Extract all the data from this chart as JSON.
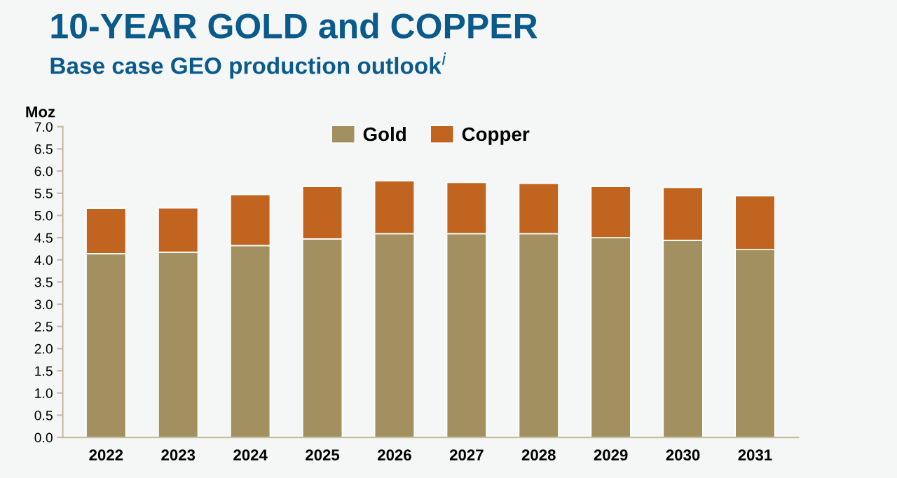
{
  "chart_data": {
    "type": "bar",
    "stacked": true,
    "title": "10-YEAR GOLD and COPPER",
    "subtitle": "Base case GEO production outlook$^{i}$",
    "ylabel": "Moz",
    "categories": [
      "2022",
      "2023",
      "2024",
      "2025",
      "2026",
      "2027",
      "2028",
      "2029",
      "2030",
      "2031"
    ],
    "series": [
      {
        "name": "Gold",
        "color": "#a39060",
        "values": [
          4.14,
          4.17,
          4.32,
          4.47,
          4.59,
          4.59,
          4.59,
          4.5,
          4.44,
          4.23
        ]
      },
      {
        "name": "Copper",
        "color": "#c06420",
        "values": [
          1.02,
          1.0,
          1.15,
          1.18,
          1.19,
          1.15,
          1.13,
          1.15,
          1.19,
          1.21
        ]
      }
    ],
    "ylim": [
      0,
      7
    ],
    "yticks": [
      {
        "value": 0,
        "label": "0.0"
      },
      {
        "value": 0.5,
        "label": "0.5"
      },
      {
        "value": 1,
        "label": "1.0"
      },
      {
        "value": 1.5,
        "label": "1.5"
      },
      {
        "value": 2,
        "label": "2.0"
      },
      {
        "value": 2.5,
        "label": "2.5"
      },
      {
        "value": 3,
        "label": "3.0"
      },
      {
        "value": 3.5,
        "label": "3.5"
      },
      {
        "value": 4,
        "label": "4.0"
      },
      {
        "value": 4.5,
        "label": "4.5"
      },
      {
        "value": 5,
        "label": "5.0"
      },
      {
        "value": 5.5,
        "label": "5.5"
      },
      {
        "value": 6,
        "label": "6.0"
      },
      {
        "value": 6.5,
        "label": "6.5"
      },
      {
        "value": 7,
        "label": "7.0"
      }
    ],
    "grid": false,
    "legend": "top"
  }
}
